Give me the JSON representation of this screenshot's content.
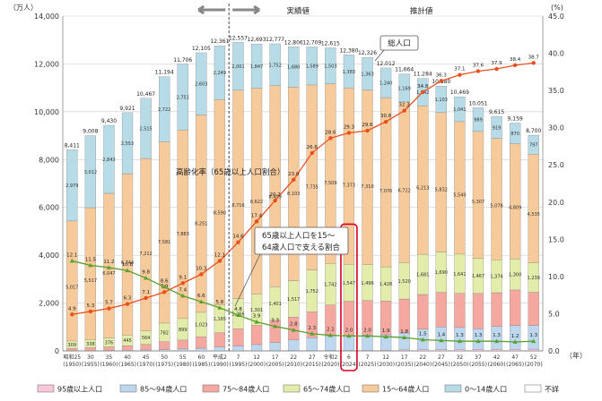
{
  "chart_data": {
    "type": "bar",
    "ylabel_left": "（万人）",
    "ylabel_right": "(%)",
    "y_left_ticks": [
      "0",
      "2,000",
      "4,000",
      "6,000",
      "8,000",
      "10,000",
      "12,000",
      "14,000"
    ],
    "y_right_ticks": [
      "0.0",
      "5.0",
      "10.0",
      "15.0",
      "20.0",
      "25.0",
      "30.0",
      "35.0",
      "40.0",
      "45.0"
    ],
    "ylim_left": [
      0,
      14000
    ],
    "ylim_right": [
      0,
      45
    ],
    "header_actual": "実績値",
    "header_projected": "推計値",
    "annotation_total": "総人口",
    "annotation_aging": "高齢化率（65歳以上人口割合）",
    "annotation_support_1": "65歳以上人口を15～",
    "annotation_support_2": "64歳人口で支える割合",
    "year_unit": "（年）",
    "x_era": [
      "昭和25",
      "30",
      "35",
      "40",
      "45",
      "50",
      "55",
      "60",
      "平成2",
      "7",
      "12",
      "17",
      "22",
      "27",
      "令和2",
      "6",
      "7",
      "12",
      "17",
      "22",
      "27",
      "32",
      "37",
      "42",
      "47",
      "52"
    ],
    "x_ad": [
      "(1950)",
      "(1955)",
      "(1960)",
      "(1965)",
      "(1970)",
      "(1975)",
      "(1980)",
      "(1985)",
      "(1990)",
      "(1995)",
      "(2000)",
      "(2005)",
      "(2010)",
      "(2015)",
      "(2020)",
      "(2024)",
      "(2025)",
      "(2030)",
      "(2035)",
      "(2040)",
      "(2045)",
      "(2050)",
      "(2055)",
      "(2060)",
      "(2065)",
      "(2070)"
    ],
    "totals": [
      "8,411",
      "9,008",
      "9,430",
      "9,921",
      "10,467",
      "11,194",
      "11,706",
      "12,105",
      "12,361",
      "12,557",
      "12,693",
      "12,777",
      "12,806",
      "12,709",
      "12,615",
      "12,380",
      "12,326",
      "12,012",
      "11,664",
      "11,284",
      "10,880",
      "10,469",
      "10,051",
      "9,615",
      "9,159",
      "8,700"
    ],
    "legend": [
      {
        "name": "95歳以上人口",
        "color": "#f7c6d8"
      },
      {
        "name": "85～94歳人口",
        "color": "#bcd7ee"
      },
      {
        "name": "75～84歳人口",
        "color": "#f5a8a0"
      },
      {
        "name": "65～74歳人口",
        "color": "#e3eca8"
      },
      {
        "name": "15～64歳人口",
        "color": "#f8cfa0"
      },
      {
        "name": "0～14歳人口",
        "color": "#b7dce8"
      },
      {
        "name": "不詳",
        "color": "#ffffff"
      }
    ],
    "series": [
      {
        "name": "95歳以上人口",
        "values": [
          0,
          0,
          0,
          0,
          0,
          0,
          0,
          0,
          1,
          2,
          4,
          7,
          10,
          14,
          18,
          24,
          26,
          33,
          40,
          48,
          54,
          63,
          66,
          70,
          66,
          73
        ]
      },
      {
        "name": "85～94歳人口",
        "values": [
          9,
          12,
          17,
          25,
          37,
          52,
          77,
          112,
          160,
          202,
          260,
          347,
          445,
          535,
          611,
          624,
          637,
          641,
          707,
          862,
          947,
          914,
          857,
          948,
          998,
          991
        ]
      },
      {
        "name": "75～84歳人口",
        "values": [
          97,
          122,
          149,
          194,
          234,
          329,
          376,
          478,
          595,
          717,
          801,
          925,
          962,
          1085,
          1289,
          1426,
          1443,
          1414,
          1422,
          1449,
          1446,
          1428,
          1480,
          1415,
          1484,
          1384
        ]
      },
      {
        "name": "65～74歳人口",
        "values": [
          309,
          338,
          376,
          445,
          564,
          782,
          899,
          1023,
          1165,
          1266,
          1301,
          1401,
          1517,
          1752,
          1742,
          1547,
          1496,
          1428,
          1520,
          1681,
          1690,
          1641,
          1467,
          1374,
          1300,
          1239
        ]
      },
      {
        "name": "15～64歳人口",
        "values": [
          5017,
          5517,
          6047,
          6744,
          7212,
          7581,
          7883,
          8251,
          8590,
          8716,
          8622,
          8409,
          8103,
          7735,
          7509,
          7373,
          7310,
          7076,
          6722,
          6213,
          5832,
          5540,
          5307,
          5078,
          4809,
          4535
        ]
      },
      {
        "name": "0～14歳人口",
        "values": [
          2979,
          3012,
          2843,
          2553,
          2515,
          2722,
          2751,
          2603,
          2249,
          2001,
          1847,
          1752,
          1680,
          1589,
          1503,
          1383,
          1363,
          1240,
          1169,
          1142,
          1103,
          1041,
          989,
          919,
          870,
          797
        ]
      }
    ],
    "seg_labels_65_74": [
      "309",
      "338",
      "376",
      "445",
      "564",
      "782",
      "899",
      "1,023",
      "1,165",
      "1,266",
      "1,301",
      "1,401",
      "1,517",
      "1,752",
      "1,742",
      "1,547",
      "1,496",
      "1,428",
      "1,520",
      "1,681",
      "1,690",
      "1,641",
      "1,467",
      "1,374",
      "1,300",
      "1,239"
    ],
    "seg_labels_15_64": [
      "5,017",
      "5,517",
      "6,047",
      "6,744",
      "7,212",
      "7,581",
      "7,883",
      "8,251",
      "8,590",
      "8,716",
      "8,622",
      "8,409",
      "8,103",
      "7,735",
      "7,509",
      "7,373",
      "7,310",
      "7,076",
      "6,722",
      "6,213",
      "5,832",
      "5,540",
      "5,307",
      "5,078",
      "4,809",
      "4,535"
    ],
    "seg_labels_0_14": [
      "2,979",
      "3,012",
      "2,843",
      "2,553",
      "2,515",
      "2,722",
      "2,751",
      "2,603",
      "2,249",
      "2,001",
      "1,847",
      "1,752",
      "1,680",
      "1,589",
      "1,503",
      "1,383",
      "1,363",
      "1,240",
      "1,169",
      "1,142",
      "1,103",
      "1,041",
      "989",
      "919",
      "870",
      "797"
    ],
    "aging_rate": {
      "name": "高齢化率（65歳以上人口割合）",
      "color": "#e8501e",
      "values": [
        4.9,
        5.3,
        5.7,
        6.3,
        7.1,
        7.9,
        9.1,
        10.3,
        12.1,
        14.6,
        17.4,
        20.2,
        23.0,
        26.6,
        28.6,
        29.3,
        29.6,
        30.8,
        32.3,
        34.8,
        36.3,
        37.1,
        37.6,
        37.9,
        38.4,
        38.7
      ],
      "labels": [
        "4.9",
        "5.3",
        "5.7",
        "6.3",
        "7.1",
        "7.9",
        "9.1",
        "10.3",
        "12.1",
        "14.6",
        "17.4",
        "20.2",
        "23.0",
        "26.6",
        "28.6",
        "29.3",
        "29.6",
        "30.8",
        "32.3",
        "34.8",
        "36.3",
        "37.1",
        "37.6",
        "37.9",
        "38.4",
        "38.7"
      ]
    },
    "support_ratio": {
      "name": "65歳以上人口を15～64歳人口で支える割合",
      "color": "#5aa02c",
      "values": [
        12.1,
        11.5,
        11.2,
        10.8,
        9.8,
        8.6,
        7.4,
        6.6,
        5.8,
        4.8,
        3.9,
        3.3,
        2.8,
        2.3,
        2.1,
        2.0,
        2.0,
        1.9,
        1.8,
        1.5,
        1.4,
        1.3,
        1.3,
        1.3,
        1.2,
        1.3
      ],
      "labels": [
        "12.1",
        "11.5",
        "11.2",
        "10.8",
        "9.8",
        "8.6",
        "7.4",
        "6.6",
        "5.8",
        "4.8",
        "3.9",
        "3.3",
        "2.8",
        "2.3",
        "2.1",
        "2.0",
        "2.0",
        "1.9",
        "1.8",
        "1.5",
        "1.4",
        "1.3",
        "1.3",
        "1.3",
        "1.2",
        "1.3"
      ]
    },
    "highlight_category": "6",
    "projection_start_category": "7"
  }
}
